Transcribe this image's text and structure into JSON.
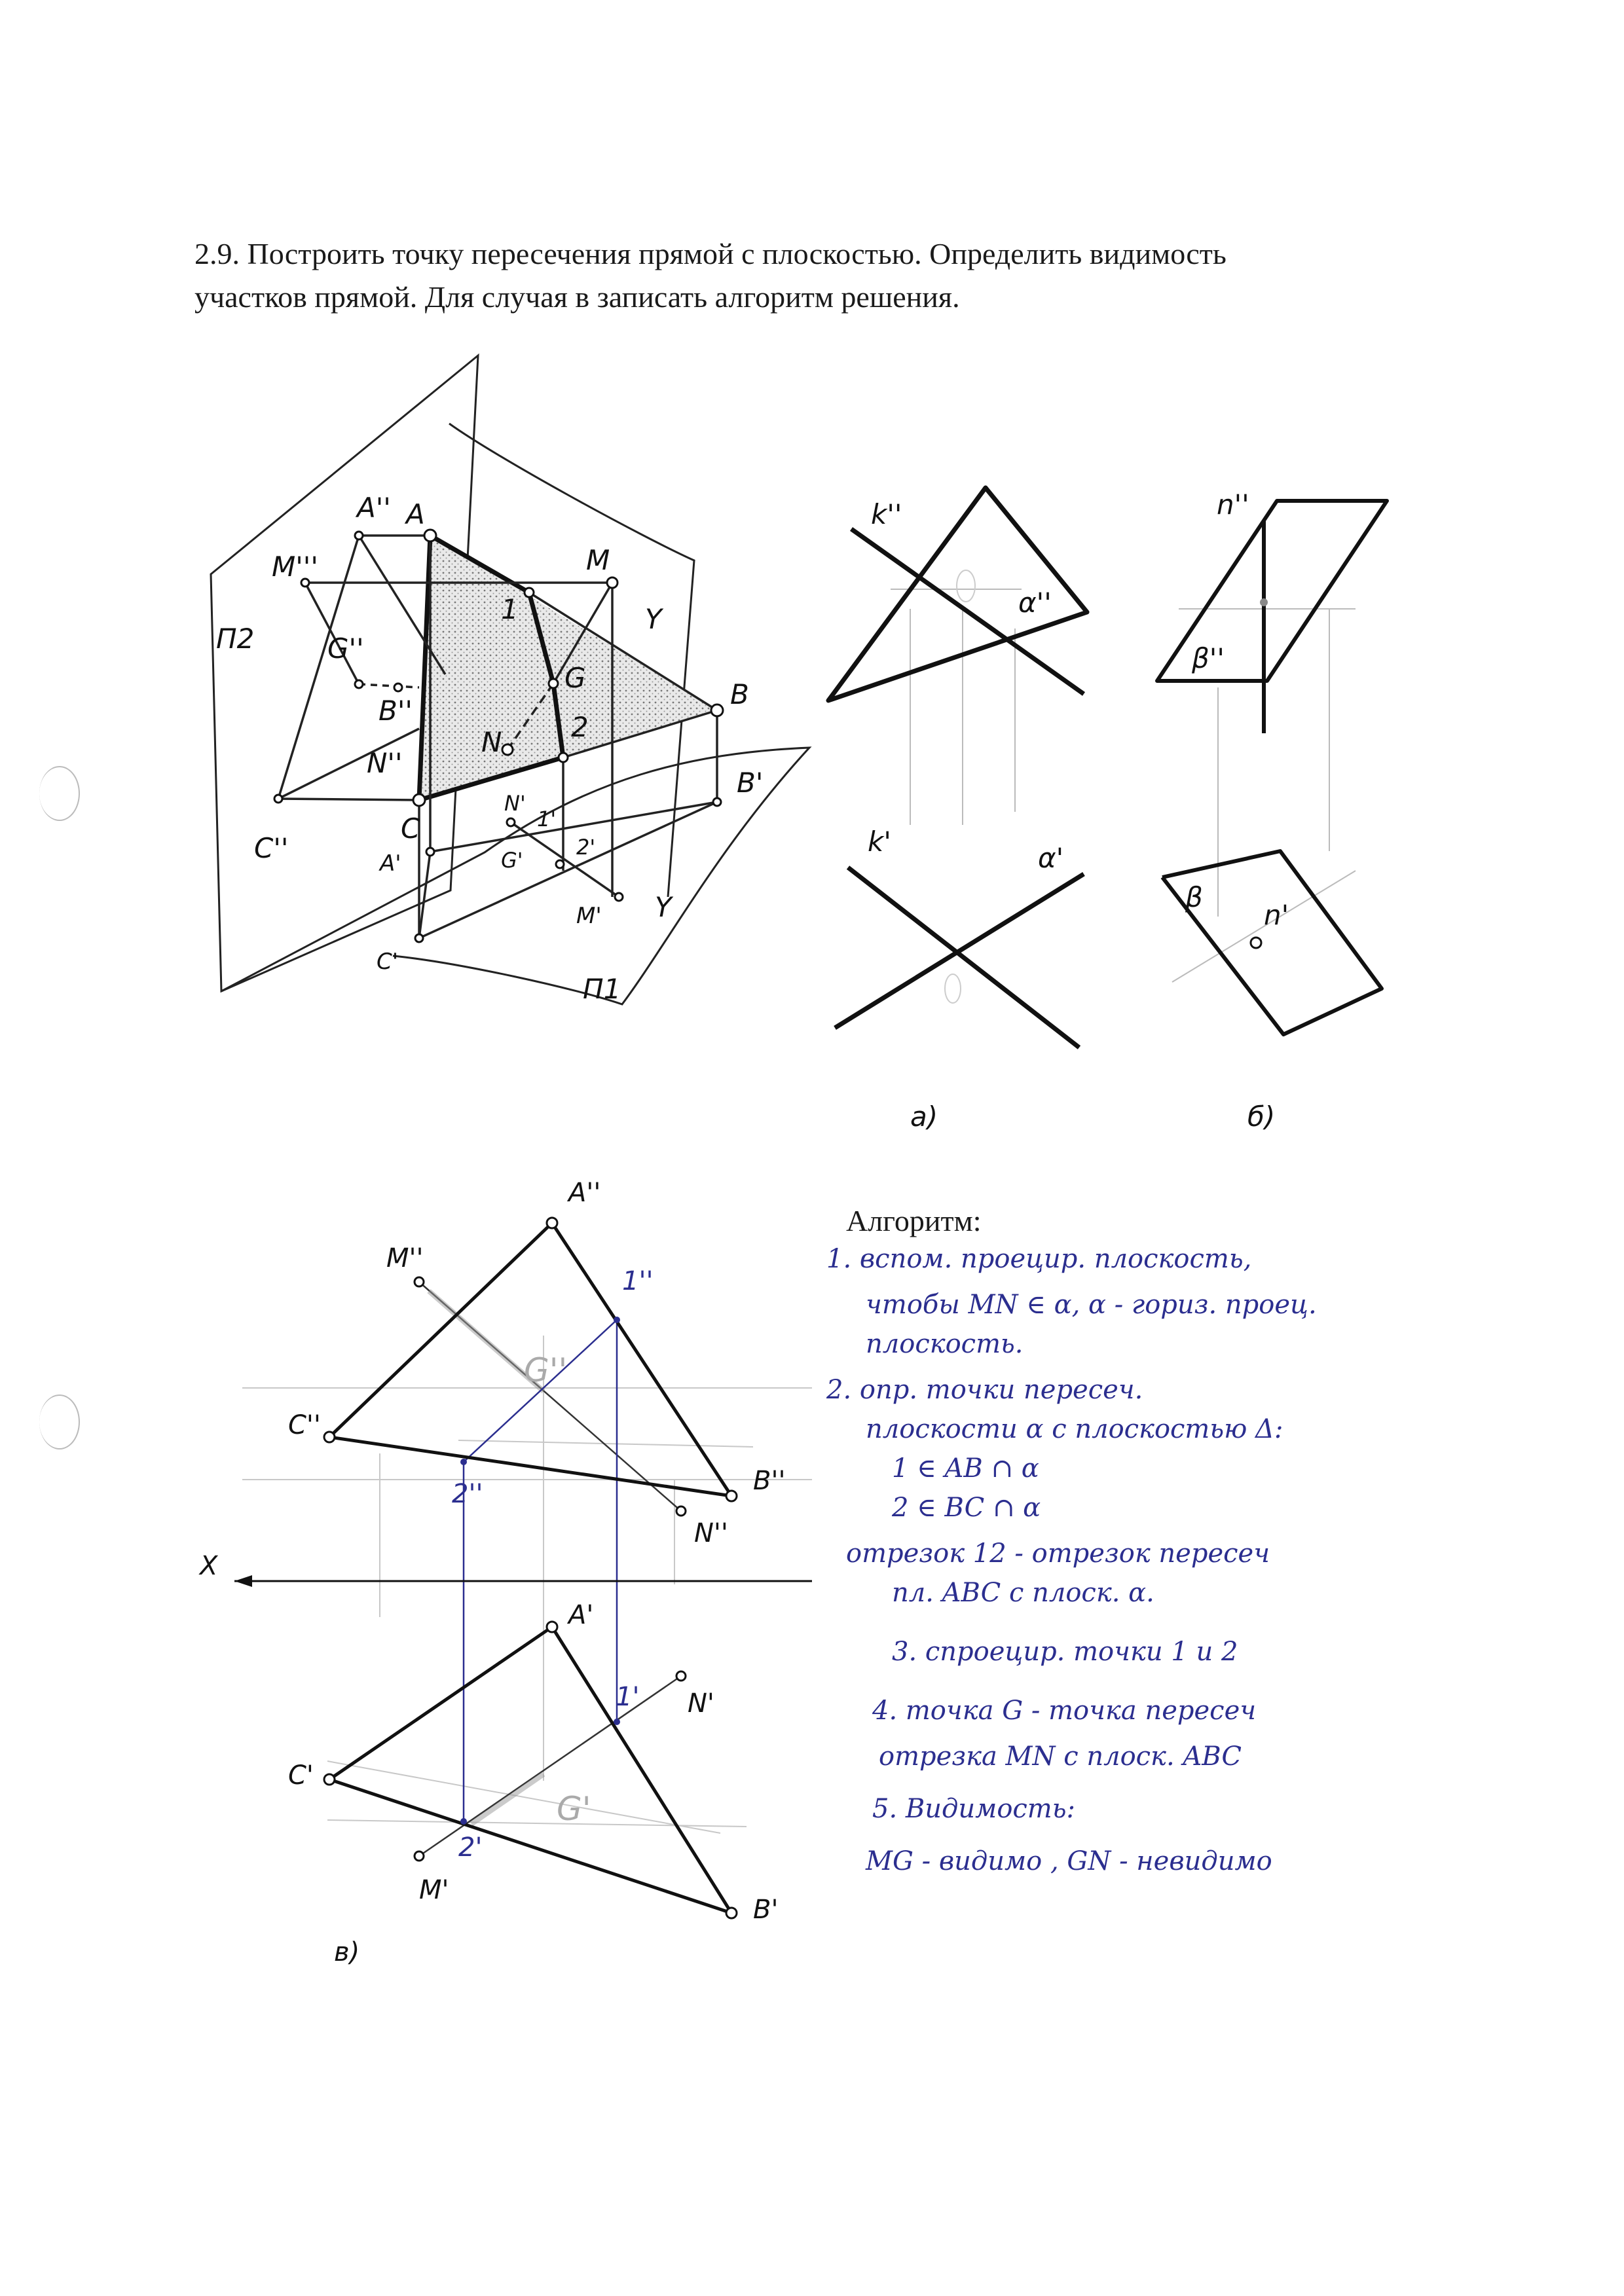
{
  "task": {
    "line1": "2.9. Построить точку пересечения прямой с плоскостью. Определить видимость",
    "line2": "участков прямой. Для случая в записать алгоритм решения."
  },
  "fig3d": {
    "pi2": "П2",
    "pi1": "П1",
    "A": "A",
    "B": "B",
    "C": "C",
    "M": "M",
    "N": "N",
    "G": "G",
    "p1": "1",
    "p2": "2",
    "A2": "A''",
    "M2": "M'''",
    "G2": "G''",
    "B2": "B''",
    "N2": "N''",
    "C2": "C''",
    "A1": "A'",
    "B1": "B'",
    "C1": "C'",
    "N1": "N'",
    "G1": "G'",
    "M1": "M'",
    "p1_1": "1'",
    "p2_1": "2'",
    "Y": "Y",
    "Y1": "Y"
  },
  "figA": {
    "k2": "k''",
    "a2": "α''",
    "k1": "k'",
    "a1": "α'",
    "caption": "а)"
  },
  "figB": {
    "n2": "n''",
    "beta2": "β''",
    "beta1": "β",
    "n1": "n'",
    "caption": "б)"
  },
  "figV": {
    "A2": "A''",
    "M2": "M''",
    "p1_2": "1''",
    "G2": "G''",
    "C2": "C''",
    "p2_2": "2''",
    "B2": "B''",
    "N2": "N''",
    "X": "X",
    "A1": "A'",
    "p1_1": "1'",
    "N1": "N'",
    "C1": "C'",
    "G1": "G'",
    "p2_1": "2'",
    "M1": "M'",
    "B1": "B'",
    "caption": "в)"
  },
  "algorithm": {
    "title": "Алгоритм:",
    "lines": [
      "1. вспом. проецир. плоскость,",
      "чтобы MN ∈ α, α - гориз. проец.",
      "плоскость.",
      "2. опр. точки пересеч.",
      "плоскости α с плоскостью Δ:",
      "1 ∈ AB ∩ α",
      "2 ∈ BC ∩ α",
      "отрезок 12 - отрезок пересеч",
      "пл. ABC с плоск. α.",
      "3. спроецир. точки 1 и 2",
      "4. точка G - точка пересеч",
      "отрезка MN с плоск. ABC",
      "5. Видимость:",
      "MG - видимо , GN - невидимо"
    ]
  }
}
